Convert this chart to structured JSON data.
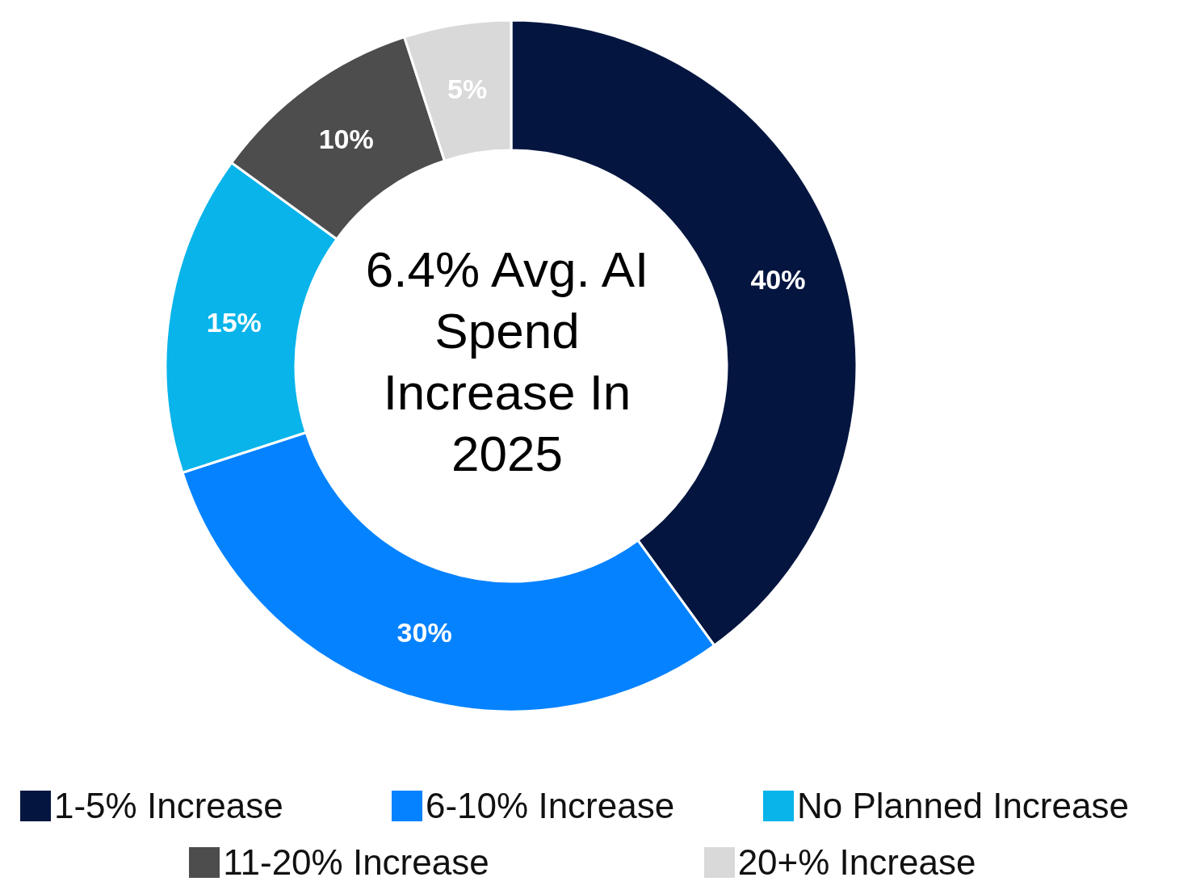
{
  "chart_data": {
    "type": "donut",
    "categories": [
      "1-5% Increase",
      "6-10% Increase",
      "No Planned Increase",
      "11-20% Increase",
      "20+% Increase"
    ],
    "values": [
      40,
      30,
      15,
      10,
      5
    ],
    "colors": [
      "#041640",
      "#0582ff",
      "#08b4ea",
      "#4d4d4d",
      "#d9d9d9"
    ],
    "value_labels": [
      "40%",
      "30%",
      "15%",
      "10%",
      "5%"
    ],
    "legend": "bottom",
    "annotations": [
      "6.4% Avg. AI Spend Increase In 2025"
    ]
  }
}
